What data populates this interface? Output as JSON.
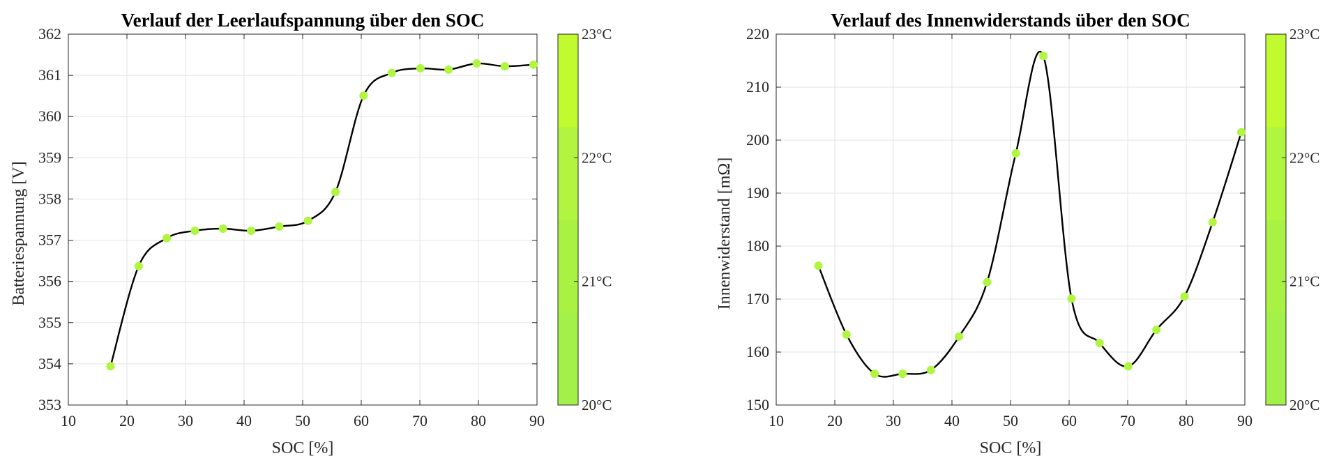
{
  "chart_data": [
    {
      "type": "line",
      "title": "Verlauf der Leerlaufspannung über den SOC",
      "xlabel": "SOC [%]",
      "ylabel": "Batteriespannung [V]",
      "xlim": [
        10,
        90
      ],
      "ylim": [
        353,
        362
      ],
      "xticks": [
        10,
        20,
        30,
        40,
        50,
        60,
        70,
        80,
        90
      ],
      "yticks": [
        353,
        354,
        355,
        356,
        357,
        358,
        359,
        360,
        361,
        362
      ],
      "grid": true,
      "line_color": "#000000",
      "marker_color": "#b0f53f",
      "series": [
        {
          "x": [
            17.2,
            22.0,
            26.8,
            31.6,
            36.4,
            41.2,
            46.0,
            50.9,
            55.6,
            60.4,
            65.2,
            70.1,
            74.9,
            79.7,
            84.5,
            89.4
          ],
          "y": [
            353.94,
            356.37,
            357.05,
            357.23,
            357.28,
            357.23,
            357.33,
            357.47,
            358.17,
            360.51,
            361.06,
            361.17,
            361.14,
            361.29,
            361.22,
            361.26
          ]
        }
      ],
      "colorbar": {
        "ticks": [
          "20°C",
          "21°C",
          "22°C",
          "23°C"
        ],
        "colors": [
          "#a2f048",
          "#a9f243",
          "#b0f53f",
          "#c2fa30"
        ]
      }
    },
    {
      "type": "line",
      "title": "Verlauf des Innenwiderstands über den SOC",
      "xlabel": "SOC [%]",
      "ylabel": "Innenwiderstand [mΩ]",
      "xlim": [
        10,
        90
      ],
      "ylim": [
        150,
        220
      ],
      "xticks": [
        10,
        20,
        30,
        40,
        50,
        60,
        70,
        80,
        90
      ],
      "yticks": [
        150,
        160,
        170,
        180,
        190,
        200,
        210,
        220
      ],
      "grid": true,
      "line_color": "#000000",
      "marker_color": "#b0f53f",
      "series": [
        {
          "x": [
            17.2,
            22.0,
            26.8,
            31.6,
            36.4,
            41.2,
            46.0,
            50.9,
            55.6,
            60.4,
            65.2,
            70.1,
            74.9,
            79.7,
            84.5,
            89.4
          ],
          "y": [
            176.3,
            163.3,
            155.9,
            155.9,
            156.6,
            162.9,
            173.2,
            197.5,
            215.9,
            170.1,
            161.7,
            157.3,
            164.2,
            170.5,
            184.5,
            201.5
          ]
        }
      ],
      "colorbar": {
        "ticks": [
          "20°C",
          "21°C",
          "22°C",
          "23°C"
        ],
        "colors": [
          "#a2f048",
          "#a9f243",
          "#b0f53f",
          "#c2fa30"
        ]
      }
    }
  ]
}
